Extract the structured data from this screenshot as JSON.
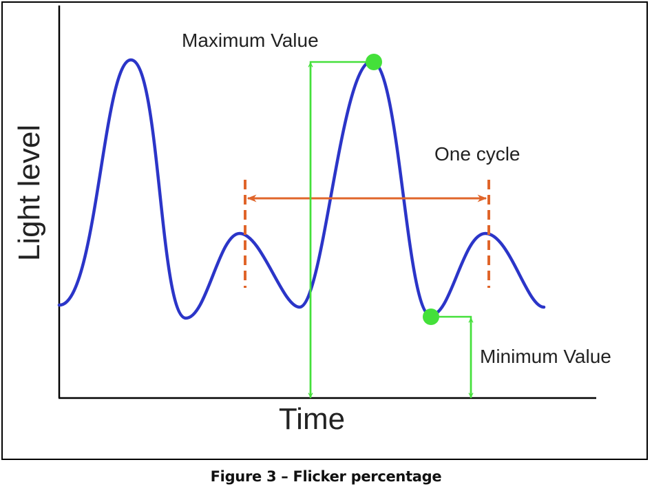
{
  "diagram": {
    "axis_y_label": "Light level",
    "axis_x_label": "Time",
    "max_label": "Maximum Value",
    "cycle_label": "One cycle",
    "min_label": "Minimum Value"
  },
  "caption": "Figure 3 – Flicker percentage",
  "colors": {
    "waveform": "#2b35c8",
    "markers": "#44e03a",
    "cycle": "#e0652a",
    "axes": "#000000"
  }
}
